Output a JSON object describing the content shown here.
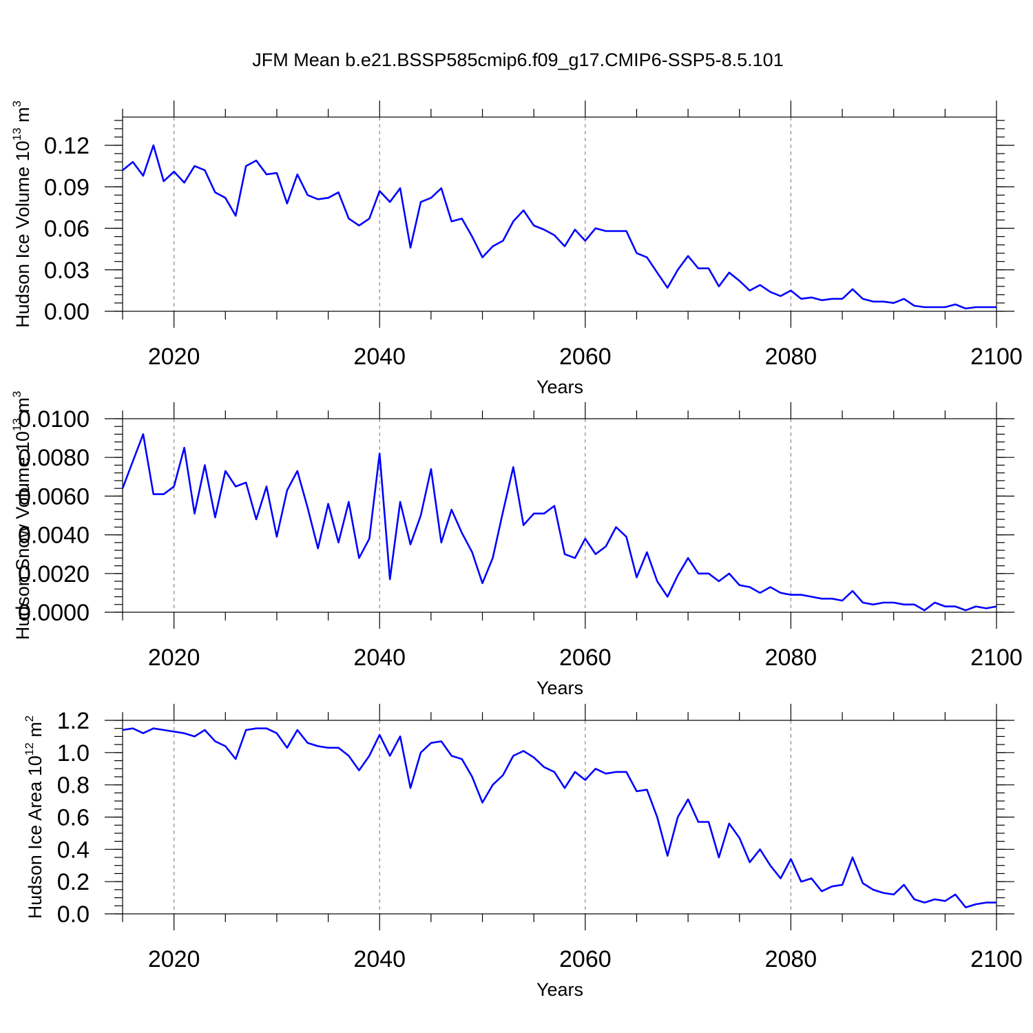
{
  "title": "JFM Mean b.e21.BSSP585cmip6.f09_g17.CMIP6-SSP5-8.5.101",
  "colors": {
    "line": "#0000ff",
    "axis": "#000000",
    "grid": "#888888"
  },
  "chart_data": [
    {
      "type": "line",
      "ylabel_text": "Hudson Ice Volume 10",
      "ylabel_exp": "13",
      "ylabel_unit": " m",
      "ylabel_unit_exp": "3",
      "xlabel": "Years",
      "xlim": [
        2015,
        2100
      ],
      "ylim": [
        -0.003,
        0.14
      ],
      "x_ticks": [
        2020,
        2040,
        2060,
        2080,
        2100
      ],
      "y_ticks": [
        "0.00",
        "0.03",
        "0.06",
        "0.09",
        "0.12"
      ],
      "y_minor": 0.006,
      "series": [
        {
          "name": "Hudson Ice Volume",
          "x_start": 2015,
          "values": [
            0.102,
            0.108,
            0.098,
            0.12,
            0.094,
            0.101,
            0.093,
            0.105,
            0.102,
            0.086,
            0.082,
            0.069,
            0.105,
            0.109,
            0.099,
            0.1,
            0.078,
            0.099,
            0.084,
            0.081,
            0.082,
            0.086,
            0.067,
            0.062,
            0.067,
            0.087,
            0.079,
            0.089,
            0.046,
            0.079,
            0.082,
            0.089,
            0.065,
            0.067,
            0.054,
            0.039,
            0.047,
            0.051,
            0.065,
            0.073,
            0.062,
            0.059,
            0.055,
            0.047,
            0.059,
            0.051,
            0.06,
            0.058,
            0.058,
            0.058,
            0.042,
            0.039,
            0.028,
            0.017,
            0.03,
            0.04,
            0.031,
            0.031,
            0.018,
            0.028,
            0.022,
            0.015,
            0.019,
            0.014,
            0.011,
            0.015,
            0.009,
            0.01,
            0.008,
            0.009,
            0.009,
            0.016,
            0.009,
            0.007,
            0.007,
            0.006,
            0.009,
            0.004,
            0.003,
            0.003,
            0.003,
            0.005,
            0.002,
            0.003,
            0.003,
            0.003
          ]
        }
      ]
    },
    {
      "type": "line",
      "ylabel_text": "Hudson Snow Volume 10",
      "ylabel_exp": "13",
      "ylabel_unit": " m",
      "ylabel_unit_exp": "3",
      "xlabel": "Years",
      "xlim": [
        2015,
        2100
      ],
      "ylim": [
        0,
        0.01
      ],
      "x_ticks": [
        2020,
        2040,
        2060,
        2080,
        2100
      ],
      "y_ticks": [
        "0.0000",
        "0.0020",
        "0.0040",
        "0.0060",
        "0.0080",
        "0.0100"
      ],
      "y_minor": 0.0004,
      "series": [
        {
          "name": "Hudson Snow Volume",
          "x_start": 2015,
          "values": [
            0.0064,
            0.0078,
            0.0092,
            0.0061,
            0.0061,
            0.0065,
            0.0085,
            0.0051,
            0.0076,
            0.0049,
            0.0073,
            0.0065,
            0.0067,
            0.0048,
            0.0065,
            0.0039,
            0.0063,
            0.0073,
            0.0054,
            0.0033,
            0.0056,
            0.0036,
            0.0057,
            0.0028,
            0.0038,
            0.0082,
            0.0017,
            0.0057,
            0.0035,
            0.005,
            0.0074,
            0.0036,
            0.0053,
            0.0041,
            0.0031,
            0.0015,
            0.0028,
            0.0052,
            0.0075,
            0.0045,
            0.0051,
            0.0051,
            0.0055,
            0.003,
            0.0028,
            0.0038,
            0.003,
            0.0034,
            0.0044,
            0.0039,
            0.0018,
            0.0031,
            0.0016,
            0.0008,
            0.0019,
            0.0028,
            0.002,
            0.002,
            0.0016,
            0.002,
            0.0014,
            0.0013,
            0.001,
            0.0013,
            0.001,
            0.0009,
            0.0009,
            0.0008,
            0.0007,
            0.0007,
            0.0006,
            0.0011,
            0.0005,
            0.0004,
            0.0005,
            0.0005,
            0.0004,
            0.0004,
            0.0001,
            0.0005,
            0.0003,
            0.0003,
            0.0001,
            0.0003,
            0.0002,
            0.0003
          ]
        }
      ]
    },
    {
      "type": "line",
      "ylabel_text": "Hudson Ice Area 10",
      "ylabel_exp": "12",
      "ylabel_unit": " m",
      "ylabel_unit_exp": "2",
      "xlabel": "Years",
      "xlim": [
        2015,
        2100
      ],
      "ylim": [
        0,
        1.2
      ],
      "x_ticks": [
        2020,
        2040,
        2060,
        2080,
        2100
      ],
      "y_ticks": [
        "0.0",
        "0.2",
        "0.4",
        "0.6",
        "0.8",
        "1.0",
        "1.2"
      ],
      "y_minor": 0.05,
      "series": [
        {
          "name": "Hudson Ice Area",
          "x_start": 2015,
          "values": [
            1.14,
            1.15,
            1.12,
            1.15,
            1.14,
            1.13,
            1.12,
            1.1,
            1.14,
            1.07,
            1.04,
            0.96,
            1.14,
            1.15,
            1.15,
            1.12,
            1.03,
            1.14,
            1.06,
            1.04,
            1.03,
            1.03,
            0.98,
            0.89,
            0.98,
            1.11,
            0.98,
            1.1,
            0.78,
            1.0,
            1.06,
            1.07,
            0.98,
            0.96,
            0.85,
            0.69,
            0.8,
            0.86,
            0.98,
            1.01,
            0.97,
            0.91,
            0.88,
            0.78,
            0.88,
            0.83,
            0.9,
            0.87,
            0.88,
            0.88,
            0.76,
            0.77,
            0.6,
            0.36,
            0.6,
            0.71,
            0.57,
            0.57,
            0.35,
            0.56,
            0.47,
            0.32,
            0.4,
            0.3,
            0.22,
            0.34,
            0.2,
            0.22,
            0.14,
            0.17,
            0.18,
            0.35,
            0.19,
            0.15,
            0.13,
            0.12,
            0.18,
            0.09,
            0.07,
            0.09,
            0.08,
            0.12,
            0.04,
            0.06,
            0.07,
            0.07
          ]
        }
      ]
    }
  ]
}
